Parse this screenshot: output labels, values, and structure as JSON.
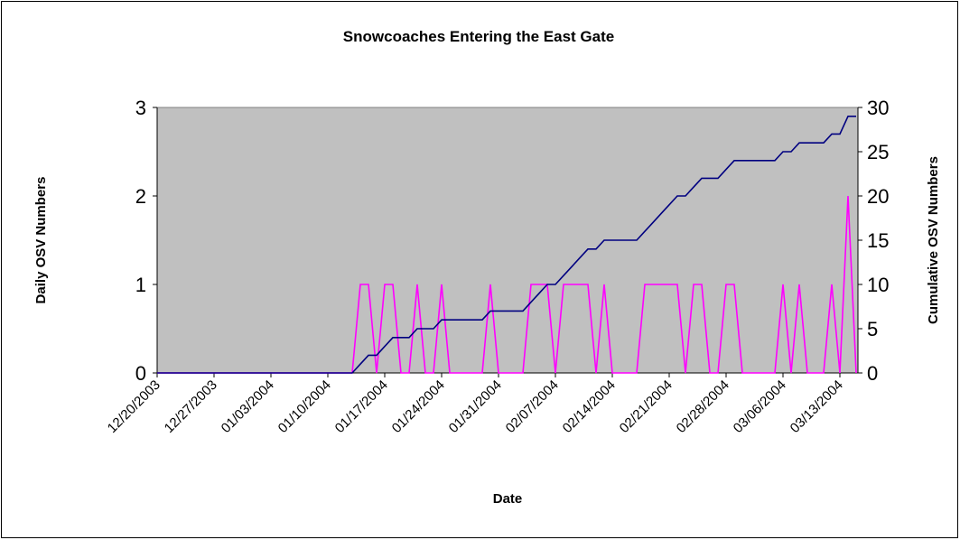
{
  "chart_data": {
    "type": "line",
    "title": "Snowcoaches Entering the East Gate",
    "x_label": "Date",
    "y_label": "Daily OSV Numbers",
    "y2_label": "Cumulative OSV Numbers",
    "categories": [
      "12/20/2003",
      null,
      null,
      null,
      null,
      null,
      null,
      "12/27/2003",
      null,
      null,
      null,
      null,
      null,
      null,
      "01/03/2004",
      null,
      null,
      null,
      null,
      null,
      null,
      "01/10/2004",
      null,
      null,
      null,
      null,
      null,
      null,
      "01/17/2004",
      null,
      null,
      null,
      null,
      null,
      null,
      "01/24/2004",
      null,
      null,
      null,
      null,
      null,
      null,
      "01/31/2004",
      null,
      null,
      null,
      null,
      null,
      null,
      "02/07/2004",
      null,
      null,
      null,
      null,
      null,
      null,
      "02/14/2004",
      null,
      null,
      null,
      null,
      null,
      null,
      "02/21/2004",
      null,
      null,
      null,
      null,
      null,
      null,
      "02/28/2004",
      null,
      null,
      null,
      null,
      null,
      null,
      "03/06/2004",
      null,
      null,
      null,
      null,
      null,
      null,
      "03/13/2004",
      null,
      null
    ],
    "series": [
      {
        "name": "Daily",
        "color": "#ff00ff",
        "axis": "y",
        "values": [
          0,
          0,
          0,
          0,
          0,
          0,
          0,
          0,
          0,
          0,
          0,
          0,
          0,
          0,
          0,
          0,
          0,
          0,
          0,
          0,
          0,
          0,
          0,
          0,
          0,
          1,
          1,
          0,
          1,
          1,
          0,
          0,
          1,
          0,
          0,
          1,
          0,
          0,
          0,
          0,
          0,
          1,
          0,
          0,
          0,
          0,
          1,
          1,
          1,
          0,
          1,
          1,
          1,
          1,
          0,
          1,
          0,
          0,
          0,
          0,
          1,
          1,
          1,
          1,
          1,
          0,
          1,
          1,
          0,
          0,
          1,
          1,
          0,
          0,
          0,
          0,
          0,
          1,
          0,
          1,
          0,
          0,
          0,
          1,
          0,
          2,
          0
        ]
      },
      {
        "name": "Cumulative",
        "color": "#000080",
        "axis": "y2",
        "values": [
          0,
          0,
          0,
          0,
          0,
          0,
          0,
          0,
          0,
          0,
          0,
          0,
          0,
          0,
          0,
          0,
          0,
          0,
          0,
          0,
          0,
          0,
          0,
          0,
          0,
          1,
          2,
          2,
          3,
          4,
          4,
          4,
          5,
          5,
          5,
          6,
          6,
          6,
          6,
          6,
          6,
          7,
          7,
          7,
          7,
          7,
          8,
          9,
          10,
          10,
          11,
          12,
          13,
          14,
          14,
          15,
          15,
          15,
          15,
          15,
          16,
          17,
          18,
          19,
          20,
          20,
          21,
          22,
          22,
          22,
          23,
          24,
          24,
          24,
          24,
          24,
          24,
          25,
          25,
          26,
          26,
          26,
          26,
          27,
          27,
          29,
          29
        ]
      }
    ],
    "ylim": [
      0,
      3
    ],
    "yticks": [
      0,
      1,
      2,
      3
    ],
    "y2lim": [
      0,
      30
    ],
    "y2ticks": [
      0,
      5,
      10,
      15,
      20,
      25,
      30
    ],
    "plot_background": "#c0c0c0"
  }
}
